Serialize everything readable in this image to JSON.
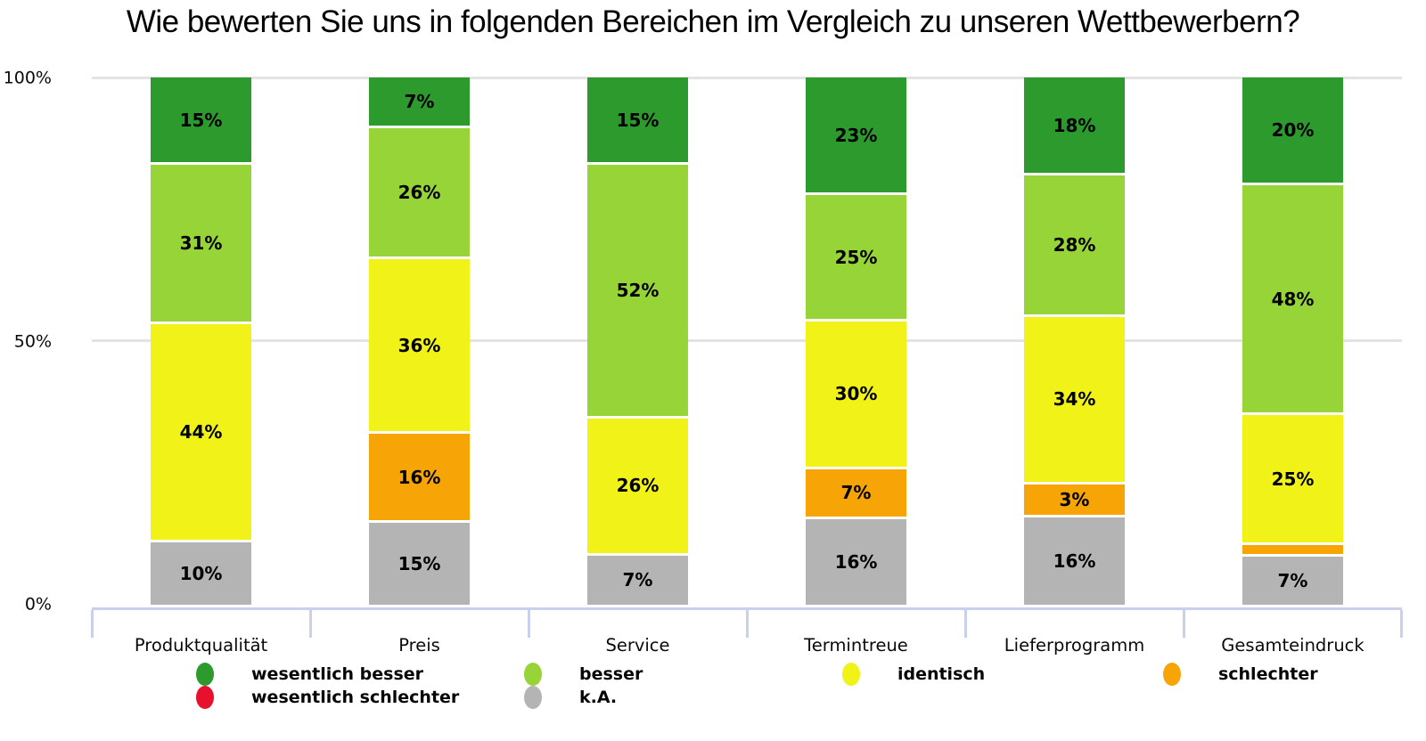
{
  "title": "Wie bewerten Sie uns in folgenden Bereichen im Vergleich zu unseren Wettbewerbern?",
  "chart_data": {
    "type": "bar",
    "stacked": true,
    "stack_unit": "percent",
    "title": "Wie bewerten Sie uns in folgenden Bereichen im Vergleich zu unseren Wettbewerbern?",
    "categories": [
      "Produktqualität",
      "Preis",
      "Service",
      "Termintreue",
      "Lieferprogramm",
      "Gesamteindruck"
    ],
    "series": [
      {
        "name": "wesentlich besser",
        "key": "wesentlich-besser",
        "color": "#2c9a2c",
        "values": [
          15,
          7,
          15,
          23,
          18,
          20
        ]
      },
      {
        "name": "besser",
        "key": "besser",
        "color": "#96d437",
        "values": [
          31,
          26,
          52,
          25,
          28,
          48
        ]
      },
      {
        "name": "identisch",
        "key": "identisch",
        "color": "#f0f218",
        "values": [
          44,
          36,
          26,
          30,
          34,
          25
        ]
      },
      {
        "name": "schlechter",
        "key": "schlechter",
        "color": "#f7a506",
        "values": [
          0,
          16,
          0,
          7,
          3,
          2
        ]
      },
      {
        "name": "wesentlich schlechter",
        "key": "wesentlich-schlechter",
        "color": "#e8112d",
        "values": [
          0,
          0,
          0,
          0,
          0,
          0
        ]
      },
      {
        "name": "k.A.",
        "key": "ka",
        "color": "#b4b4b4",
        "values": [
          10,
          15,
          7,
          16,
          16,
          7
        ]
      }
    ],
    "yticks": [
      "100%",
      "50%",
      "0%"
    ],
    "ylim": [
      0,
      100
    ],
    "grid": "horizontal",
    "min_label_value": 3,
    "value_label_suffix": "%",
    "legend_position": "bottom",
    "legend_rows": [
      [
        "wesentlich-besser",
        "besser",
        "identisch",
        "schlechter"
      ],
      [
        "wesentlich-schlechter",
        "ka"
      ]
    ]
  },
  "colors": {
    "axis_line": "#c9d0ec",
    "gridline": "#e3e3e3",
    "text": "#000000",
    "background": "#ffffff"
  }
}
